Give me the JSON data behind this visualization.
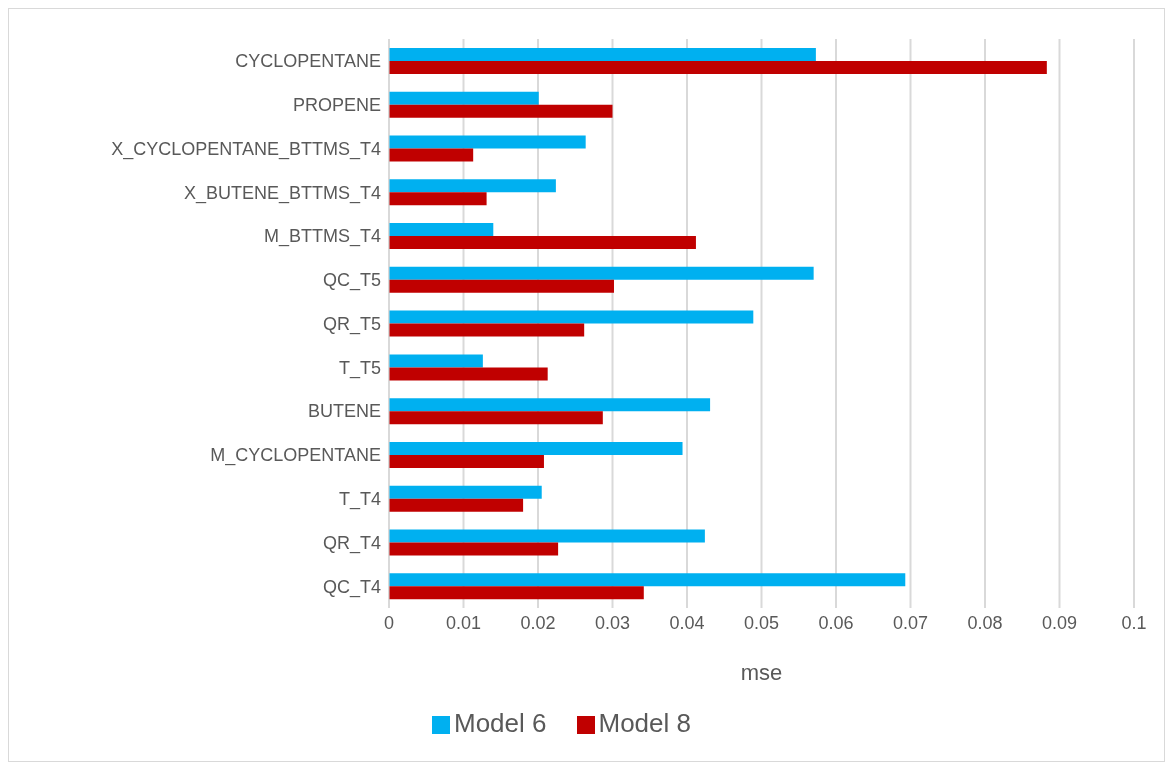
{
  "chart_data": {
    "type": "bar",
    "orientation": "horizontal",
    "xlabel": "mse",
    "categories": [
      "CYCLOPENTANE",
      "PROPENE",
      "X_CYCLOPENTANE_BTTMS_T4",
      "X_BUTENE_BTTMS_T4",
      "M_BTTMS_T4",
      "QC_T5",
      "QR_T5",
      "T_T5",
      "BUTENE",
      "M_CYCLOPENTANE",
      "T_T4",
      "QR_T4",
      "QC_T4"
    ],
    "series": [
      {
        "name": "Model 6",
        "color": "#00b0f0",
        "values": [
          0.0573,
          0.0201,
          0.0264,
          0.0224,
          0.014,
          0.057,
          0.0489,
          0.0126,
          0.0431,
          0.0394,
          0.0205,
          0.0424,
          0.0693
        ]
      },
      {
        "name": "Model 8",
        "color": "#c00000",
        "values": [
          0.0883,
          0.03,
          0.0113,
          0.0131,
          0.0412,
          0.0302,
          0.0262,
          0.0213,
          0.0287,
          0.0208,
          0.018,
          0.0227,
          0.0342
        ]
      }
    ],
    "xlim": [
      0,
      0.1
    ],
    "xticks": [
      0,
      0.01,
      0.02,
      0.03,
      0.04,
      0.05,
      0.06,
      0.07,
      0.08,
      0.09,
      0.1
    ],
    "grid": "x",
    "legend": "bottom"
  }
}
